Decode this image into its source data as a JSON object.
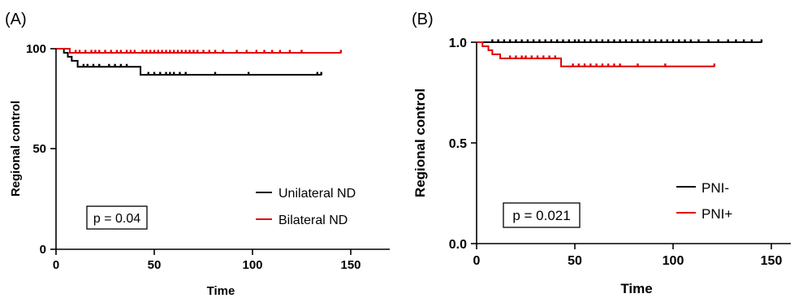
{
  "chart_data": [
    {
      "type": "line",
      "panel_label": "(A)",
      "xlabel": "Time",
      "ylabel": "Regional control",
      "xlim": [
        0,
        170
      ],
      "ylim": [
        0,
        105
      ],
      "x_ticks": [
        "0",
        "50",
        "100",
        "150"
      ],
      "y_ticks": [
        "0",
        "50",
        "100"
      ],
      "annotation": "p = 0.04",
      "series": [
        {
          "name": "Unilateral ND",
          "color": "#000000",
          "steps": [
            [
              0,
              100
            ],
            [
              4,
              98
            ],
            [
              6,
              96
            ],
            [
              8,
              94
            ],
            [
              11,
              91
            ],
            [
              43,
              91
            ],
            [
              43,
              87
            ],
            [
              135,
              87
            ]
          ],
          "censored": [
            14,
            16,
            19,
            22,
            27,
            30,
            33,
            36,
            47,
            50,
            53,
            56,
            58,
            60,
            63,
            66,
            81,
            98,
            133,
            135
          ]
        },
        {
          "name": "Bilateral ND",
          "color": "#e00000",
          "steps": [
            [
              0,
              100
            ],
            [
              7,
              100
            ],
            [
              7,
              98
            ],
            [
              145,
              98
            ]
          ],
          "censored": [
            10,
            12,
            15,
            18,
            20,
            22,
            25,
            28,
            31,
            33,
            36,
            38,
            40,
            44,
            46,
            48,
            50,
            52,
            54,
            56,
            58,
            60,
            62,
            64,
            66,
            68,
            70,
            72,
            75,
            78,
            81,
            85,
            92,
            97,
            102,
            106,
            110,
            114,
            119,
            125,
            145
          ]
        }
      ]
    },
    {
      "type": "line",
      "panel_label": "(B)",
      "xlabel": "Time",
      "ylabel": "Regional control",
      "xlim": [
        0,
        160
      ],
      "ylim": [
        0,
        1.05
      ],
      "x_ticks": [
        "0",
        "50",
        "100",
        "150"
      ],
      "y_ticks": [
        "0.0",
        "0.5",
        "1.0"
      ],
      "annotation": "p = 0.021",
      "series": [
        {
          "name": "PNI-",
          "color": "#000000",
          "steps": [
            [
              0,
              1.0
            ],
            [
              145,
              1.0
            ]
          ],
          "censored": [
            8,
            11,
            14,
            17,
            20,
            23,
            26,
            29,
            32,
            35,
            38,
            41,
            44,
            47,
            50,
            52,
            55,
            58,
            61,
            64,
            67,
            70,
            73,
            76,
            79,
            82,
            85,
            88,
            91,
            94,
            97,
            100,
            103,
            106,
            109,
            113,
            118,
            123,
            128,
            132,
            136,
            140,
            145
          ]
        },
        {
          "name": "PNI+",
          "color": "#e00000",
          "steps": [
            [
              0,
              1.0
            ],
            [
              3,
              0.98
            ],
            [
              6,
              0.96
            ],
            [
              8,
              0.94
            ],
            [
              12,
              0.92
            ],
            [
              43,
              0.92
            ],
            [
              43,
              0.88
            ],
            [
              121,
              0.88
            ]
          ],
          "censored": [
            17,
            20,
            23,
            25,
            28,
            31,
            34,
            37,
            40,
            49,
            52,
            55,
            58,
            61,
            64,
            67,
            70,
            73,
            82,
            96,
            121
          ]
        }
      ]
    }
  ]
}
